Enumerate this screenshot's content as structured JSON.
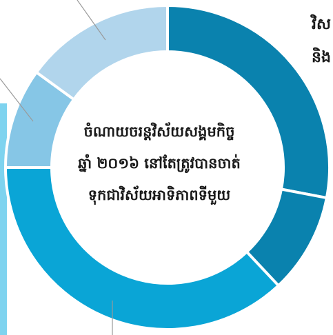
{
  "chart_data": {
    "type": "donut",
    "colors": [
      "#0a82ae",
      "#0a82ae",
      "#0aa5d6",
      "#86c6e6",
      "#b1d5ec"
    ],
    "segments": [
      {
        "value": 28,
        "color": "#0a82ae"
      },
      {
        "value": 10,
        "color": "#0a82ae"
      },
      {
        "value": 37,
        "color": "#0aa5d6"
      },
      {
        "value": 10,
        "color": "#86c6e6"
      },
      {
        "value": 15,
        "color": "#b1d5ec"
      }
    ],
    "center_lines": [
      "ចំណាយចរន្តវិស័យសង្គមកិច្ច",
      "ឆ្នាំ ២០១៦ នៅតែត្រូវបានចាត់",
      "ទុកជាវិស័យអាទិភាពទីមួយ"
    ]
  },
  "side_text": [
    "វិស",
    "និង"
  ]
}
